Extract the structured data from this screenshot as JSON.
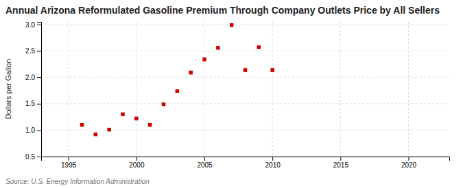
{
  "chart_data": {
    "type": "scatter",
    "title": "Annual Arizona Reformulated Gasoline Premium Through Company Outlets Price by All Sellers",
    "ylabel": "Dollars per Gallon",
    "annotation": "Source: U.S. Energy Information Administration",
    "x": [
      1996,
      1997,
      1998,
      1999,
      2000,
      2001,
      2002,
      2003,
      2004,
      2005,
      2006,
      2007,
      2008,
      2009,
      2010
    ],
    "values": [
      1.1,
      0.92,
      1.01,
      1.3,
      1.22,
      1.1,
      1.49,
      1.74,
      2.09,
      2.34,
      2.56,
      2.99,
      2.14,
      2.57,
      2.14
    ],
    "color": "#cc0000",
    "marker": "square",
    "xlim": [
      1993.0,
      2023.0
    ],
    "ylim": [
      0.5,
      3.05
    ],
    "xticks": [
      1995,
      2000,
      2005,
      2010,
      2015,
      2020
    ],
    "yticks": [
      0.5,
      {
        "value": 1.0,
        "label": "1.0"
      },
      1.5,
      {
        "value": 2.0,
        "label": "2.0"
      },
      2.5,
      {
        "value": 3.0,
        "label": "3.0"
      }
    ],
    "grid": true
  }
}
